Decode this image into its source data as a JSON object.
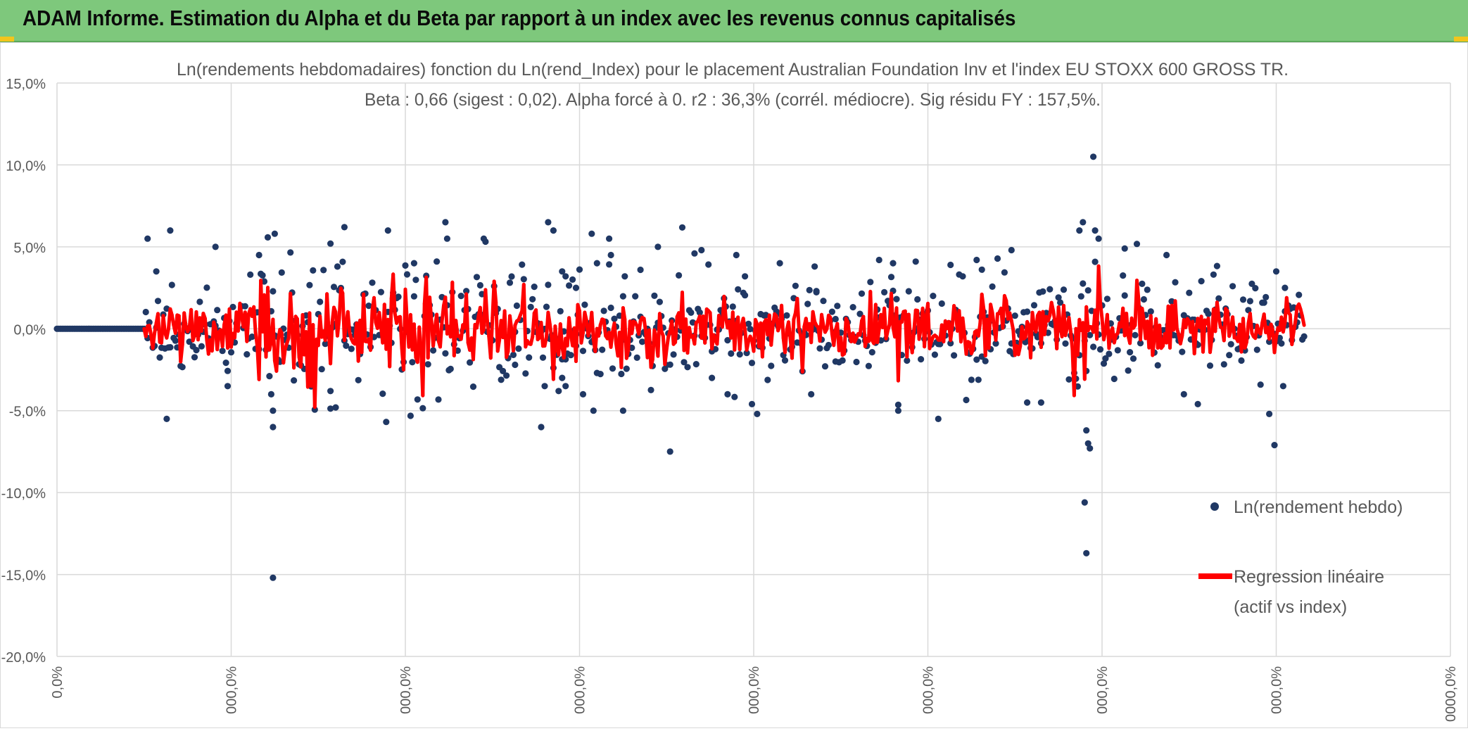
{
  "header": {
    "title": "ADAM Informe. Estimation du Alpha et du Beta par rapport à un index avec les revenus connus capitalisés"
  },
  "colors": {
    "banner": "#7ec87c",
    "accent_corner": "#f2c51c",
    "points": "#203864",
    "regression": "#ff0000",
    "grid": "#d9d9d9",
    "axis_text": "#595959"
  },
  "chart_data": {
    "type": "scatter",
    "title": "Ln(rendements hebdomadaires) fonction du Ln(rend_Index) pour le placement Australian Foundation Inv et l'index EU STOXX 600 GROSS TR.",
    "subtitle": "Beta : 0,66 (sigest : 0,02). Alpha forcé à 0. r2 : 36,3% (corrél. médiocre). Sig résidu FY : 157,5%.",
    "xlabel": "",
    "ylabel": "",
    "ylim": [
      -0.2,
      0.15
    ],
    "y_ticks": [
      0.15,
      0.1,
      0.05,
      0.0,
      -0.05,
      -0.1,
      -0.15,
      -0.2
    ],
    "y_tick_labels": [
      "15,0%",
      "10,0%",
      "5,0%",
      "0,0%",
      "-5,0%",
      "-10,0%",
      "-15,0%",
      "-20,0%"
    ],
    "xlim": [
      0,
      800
    ],
    "x_ticks": [
      0,
      100,
      200,
      300,
      400,
      500,
      600,
      700,
      800
    ],
    "x_tick_labels": [
      "0,0%",
      "000,0%",
      "000,0%",
      "000,0%",
      "000,0%",
      "000,0%",
      "000,0%",
      "000,0%",
      "0000,0%"
    ],
    "grid": true,
    "legend_position": "right",
    "series": [
      {
        "name": "Ln(rendement hebdo)",
        "kind": "points",
        "n": 717,
        "zero_until": 51,
        "outliers": [
          [
            52,
            0.055
          ],
          [
            57,
            0.035
          ],
          [
            65,
            0.06
          ],
          [
            63,
            -0.055
          ],
          [
            91,
            0.05
          ],
          [
            98,
            -0.035
          ],
          [
            116,
            0.045
          ],
          [
            123,
            -0.04
          ],
          [
            124,
            -0.05
          ],
          [
            124,
            -0.06
          ],
          [
            125,
            0.058
          ],
          [
            124,
            -0.152
          ],
          [
            157,
            0.052
          ],
          [
            165,
            0.062
          ],
          [
            157,
            -0.038
          ],
          [
            160,
            -0.048
          ],
          [
            190,
            0.06
          ],
          [
            205,
            0.04
          ],
          [
            223,
            0.065
          ],
          [
            224,
            0.055
          ],
          [
            245,
            0.055
          ],
          [
            278,
            -0.06
          ],
          [
            280,
            -0.035
          ],
          [
            282,
            0.065
          ],
          [
            285,
            0.06
          ],
          [
            290,
            0.035
          ],
          [
            292,
            0.032
          ],
          [
            296,
            0.03
          ],
          [
            288,
            -0.038
          ],
          [
            290,
            -0.03
          ],
          [
            292,
            -0.035
          ],
          [
            263,
            -0.022
          ],
          [
            298,
            0.025
          ],
          [
            308,
            -0.05
          ],
          [
            302,
            -0.04
          ],
          [
            307,
            0.058
          ],
          [
            310,
            0.04
          ],
          [
            317,
            0.055
          ],
          [
            318,
            0.045
          ],
          [
            326,
            0.032
          ],
          [
            325,
            -0.05
          ],
          [
            335,
            0.036
          ],
          [
            345,
            0.05
          ],
          [
            352,
            -0.075
          ],
          [
            366,
            0.046
          ],
          [
            370,
            0.048
          ],
          [
            376,
            -0.03
          ],
          [
            385,
            -0.04
          ],
          [
            390,
            0.045
          ],
          [
            395,
            0.032
          ],
          [
            399,
            -0.046
          ],
          [
            402,
            -0.052
          ],
          [
            415,
            0.04
          ],
          [
            435,
            0.038
          ],
          [
            433,
            -0.04
          ],
          [
            436,
            0.023
          ],
          [
            447,
            -0.02
          ],
          [
            472,
            0.042
          ],
          [
            480,
            0.04
          ],
          [
            483,
            -0.05
          ],
          [
            493,
            0.041
          ],
          [
            506,
            -0.055
          ],
          [
            513,
            0.039
          ],
          [
            520,
            0.032
          ],
          [
            528,
            0.042
          ],
          [
            531,
            -0.017
          ],
          [
            548,
            0.048
          ],
          [
            557,
            -0.045
          ],
          [
            565,
            -0.045
          ],
          [
            587,
            0.06
          ],
          [
            589,
            0.065
          ],
          [
            591,
            -0.062
          ],
          [
            592,
            -0.07
          ],
          [
            593,
            -0.073
          ],
          [
            590,
            -0.106
          ],
          [
            591,
            -0.137
          ],
          [
            595,
            0.105
          ],
          [
            596,
            0.06
          ],
          [
            598,
            0.055
          ],
          [
            613,
            0.049
          ],
          [
            637,
            0.045
          ],
          [
            647,
            -0.04
          ],
          [
            655,
            -0.046
          ],
          [
            696,
            -0.052
          ],
          [
            699,
            -0.071
          ],
          [
            700,
            0.035
          ],
          [
            705,
            0.025
          ],
          [
            704,
            -0.035
          ]
        ]
      },
      {
        "name": "Regression linéaire\n(actif vs index)",
        "legend_line1": "Regression linéaire",
        "legend_line2": "(actif vs index)",
        "kind": "line",
        "beta": 0.66,
        "alpha": 0
      }
    ],
    "annotations": []
  }
}
